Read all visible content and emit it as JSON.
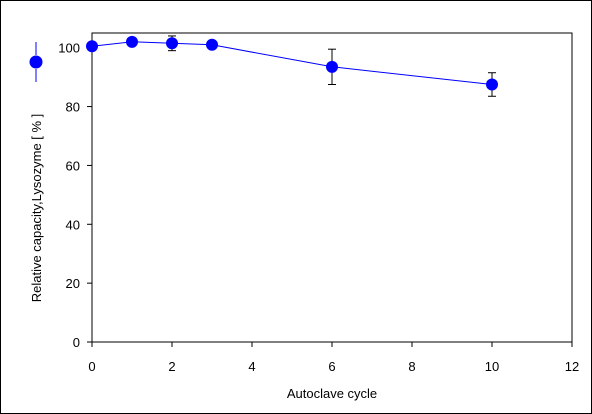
{
  "chart_data": {
    "type": "line",
    "xlabel": "Autoclave cycle",
    "ylabel": "Relative capacity,Lysozyme [ % ]",
    "xlim": [
      0,
      12
    ],
    "ylim": [
      0,
      105
    ],
    "x_ticks": [
      0,
      2,
      4,
      6,
      8,
      10,
      12
    ],
    "y_ticks": [
      0,
      20,
      40,
      60,
      80,
      100
    ],
    "x_tick_labels": [
      "0",
      "2",
      "4",
      "6",
      "8",
      "10",
      "12"
    ],
    "y_tick_labels": [
      "0",
      "20",
      "40",
      "60",
      "80",
      "100"
    ],
    "grid": false,
    "legend": "in y-axis title (marker symbol)",
    "series": [
      {
        "color": "#0000ff",
        "marker": "circle",
        "x": [
          0,
          1,
          2,
          3,
          6,
          10
        ],
        "y": [
          100.5,
          102,
          101.5,
          101,
          93.5,
          87.5
        ],
        "err": [
          0,
          0,
          2.5,
          0,
          6,
          4
        ]
      }
    ]
  }
}
